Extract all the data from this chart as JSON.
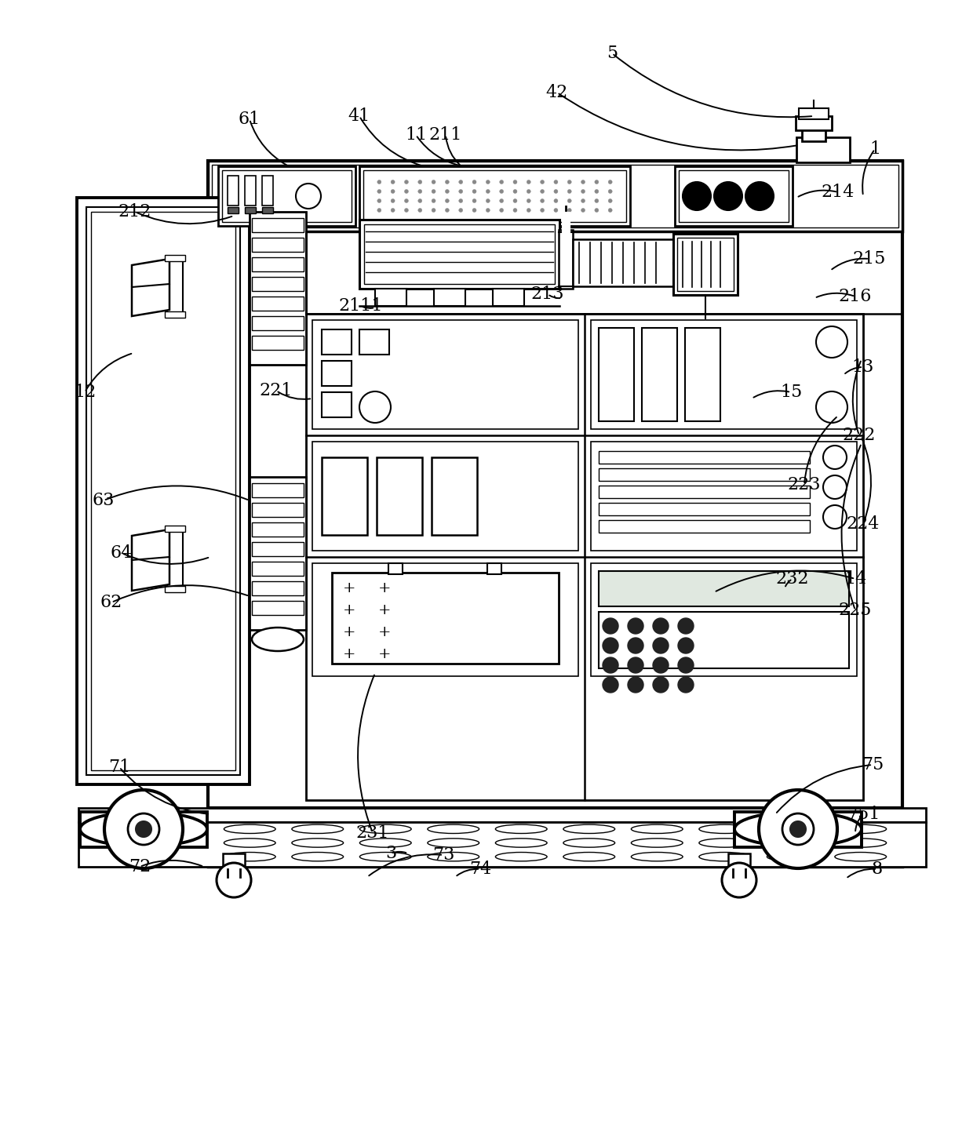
{
  "bg_color": "#ffffff",
  "lc": "#000000",
  "figsize": [
    12.4,
    14.38
  ],
  "dpi": 100,
  "labels": [
    [
      "1",
      1115,
      190
    ],
    [
      "5",
      780,
      68
    ],
    [
      "11",
      530,
      172
    ],
    [
      "12",
      108,
      500
    ],
    [
      "13",
      1100,
      468
    ],
    [
      "14",
      1090,
      738
    ],
    [
      "15",
      1008,
      500
    ],
    [
      "41",
      458,
      148
    ],
    [
      "42",
      710,
      118
    ],
    [
      "61",
      318,
      152
    ],
    [
      "62",
      142,
      768
    ],
    [
      "63",
      132,
      638
    ],
    [
      "64",
      155,
      705
    ],
    [
      "71",
      152,
      978
    ],
    [
      "72",
      178,
      1105
    ],
    [
      "73",
      565,
      1090
    ],
    [
      "74",
      612,
      1108
    ],
    [
      "75",
      1112,
      975
    ],
    [
      "751",
      1100,
      1038
    ],
    [
      "8",
      1118,
      1108
    ],
    [
      "3",
      498,
      1088
    ],
    [
      "211",
      568,
      172
    ],
    [
      "212",
      172,
      270
    ],
    [
      "213",
      698,
      375
    ],
    [
      "214",
      1068,
      245
    ],
    [
      "215",
      1108,
      330
    ],
    [
      "216",
      1090,
      378
    ],
    [
      "221",
      352,
      498
    ],
    [
      "222",
      1095,
      555
    ],
    [
      "223",
      1025,
      618
    ],
    [
      "224",
      1100,
      668
    ],
    [
      "225",
      1090,
      778
    ],
    [
      "231",
      475,
      1062
    ],
    [
      "232",
      1010,
      738
    ],
    [
      "2111",
      460,
      390
    ]
  ]
}
